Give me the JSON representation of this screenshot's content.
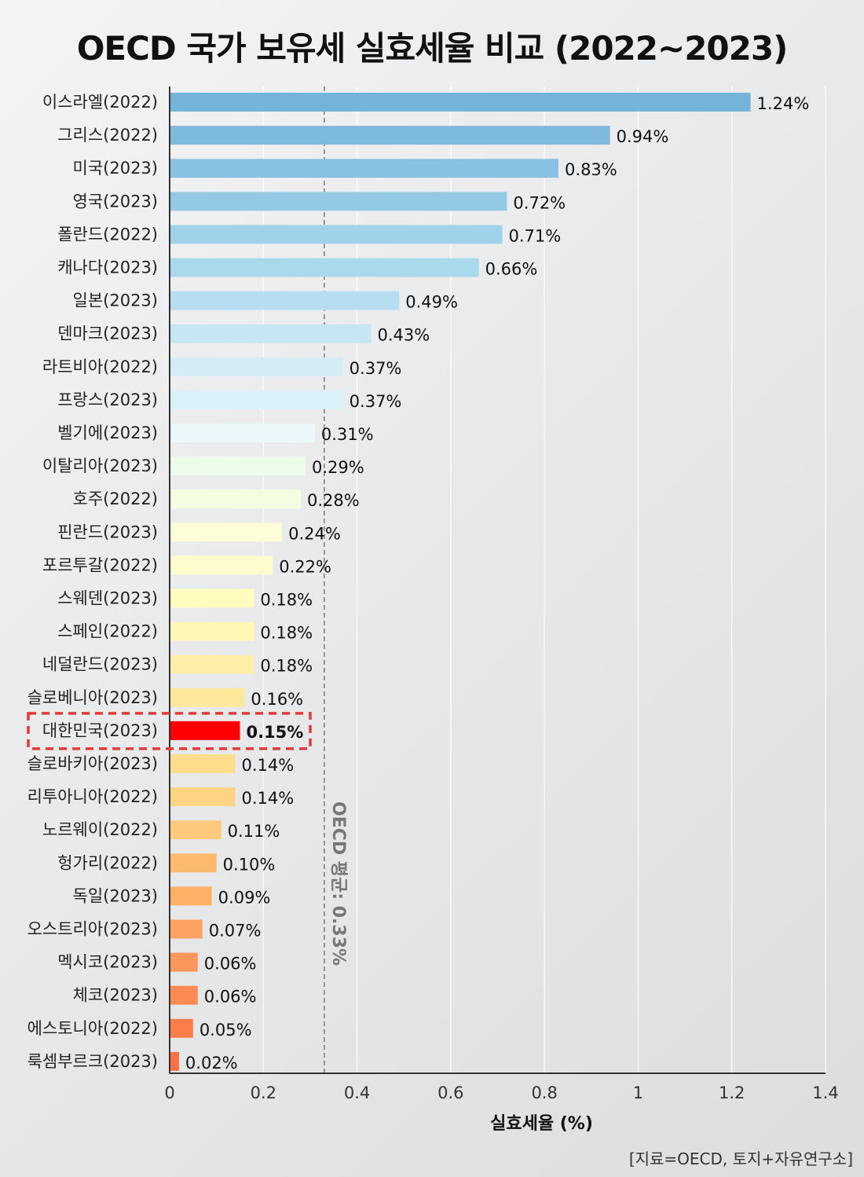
{
  "chart_data": {
    "type": "bar",
    "orientation": "horizontal",
    "title": "OECD 국가 보유세 실효세율 비교 (2022~2023)",
    "xlabel": "실효세율 (%)",
    "ylabel": "",
    "xlim": [
      0,
      1.4
    ],
    "xticks": [
      0,
      0.2,
      0.4,
      0.6,
      0.8,
      1,
      1.2,
      1.4
    ],
    "xtick_labels": [
      "0",
      "0.2",
      "0.4",
      "0.6",
      "0.8",
      "1",
      "1.2",
      "1.4"
    ],
    "grid": true,
    "categories": [
      "이스라엘(2022)",
      "그리스(2022)",
      "미국(2023)",
      "영국(2023)",
      "폴란드(2022)",
      "캐나다(2023)",
      "일본(2023)",
      "덴마크(2023)",
      "라트비아(2022)",
      "프랑스(2023)",
      "벨기에(2023)",
      "이탈리아(2023)",
      "호주(2022)",
      "핀란드(2023)",
      "포르투갈(2022)",
      "스웨덴(2023)",
      "스페인(2022)",
      "네덜란드(2023)",
      "슬로베니아(2023)",
      "대한민국(2023)",
      "슬로바키아(2023)",
      "리투아니아(2022)",
      "노르웨이(2022)",
      "헝가리(2022)",
      "독일(2023)",
      "오스트리아(2023)",
      "멕시코(2023)",
      "체코(2023)",
      "에스토니아(2022)",
      "룩셈부르크(2023)"
    ],
    "values": [
      1.24,
      0.94,
      0.83,
      0.72,
      0.71,
      0.66,
      0.49,
      0.43,
      0.37,
      0.37,
      0.31,
      0.29,
      0.28,
      0.24,
      0.22,
      0.18,
      0.18,
      0.18,
      0.16,
      0.15,
      0.14,
      0.14,
      0.11,
      0.1,
      0.09,
      0.07,
      0.06,
      0.06,
      0.05,
      0.02
    ],
    "value_labels": [
      "1.24%",
      "0.94%",
      "0.83%",
      "0.72%",
      "0.71%",
      "0.66%",
      "0.49%",
      "0.43%",
      "0.37%",
      "0.37%",
      "0.31%",
      "0.29%",
      "0.28%",
      "0.24%",
      "0.22%",
      "0.18%",
      "0.18%",
      "0.18%",
      "0.16%",
      "0.15%",
      "0.14%",
      "0.14%",
      "0.11%",
      "0.10%",
      "0.09%",
      "0.07%",
      "0.06%",
      "0.06%",
      "0.05%",
      "0.02%"
    ],
    "colors": [
      "#74b4d9",
      "#7fbade",
      "#88c1e1",
      "#94c9e6",
      "#a0d2ea",
      "#a9d9ed",
      "#b6def0",
      "#c7e6f3",
      "#d3ecf6",
      "#dcf2fb",
      "#eaf8fb",
      "#eefcec",
      "#f3fde0",
      "#fdfdd8",
      "#fdfccc",
      "#fffcc0",
      "#fff7b6",
      "#ffefa8",
      "#fde89c",
      "#ff0000",
      "#fddc8c",
      "#fdd484",
      "#fdc97c",
      "#fdba6e",
      "#fdb066",
      "#fda262",
      "#fd965a",
      "#fd8a52",
      "#fc7d4a",
      "#fb7044"
    ],
    "highlight": {
      "category": "대한민국(2023)",
      "value_label": "0.15%",
      "color": "#ff0000",
      "box_color": "#e53935"
    },
    "reference_line": {
      "value": 0.33,
      "label": "OECD 평균: 0.33%"
    }
  },
  "source_note": "[지료=OECD, 토지+자유연구소]"
}
